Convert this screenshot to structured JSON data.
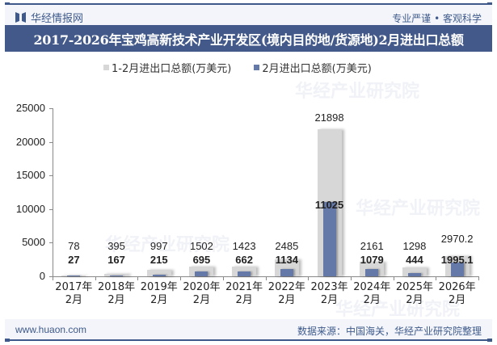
{
  "header": {
    "logo_text": "华经情报网",
    "slogan": "专业严谨 • 客观科学"
  },
  "title": "2017-2026年宝鸡高新技术产业开发区(境内目的地/货源地)2月进出口总额",
  "legend": [
    {
      "label": "1-2月进出口总额(万美元)",
      "color": "#d7d7d7"
    },
    {
      "label": "2月进出口总额(万美元)",
      "color": "#6479a8"
    }
  ],
  "watermark": "华经产业研究院",
  "footer": {
    "website": "www.huaon.com",
    "source": "数据来源：中国海关，华经产业研究院整理"
  },
  "chart_data": {
    "type": "bar",
    "title": "2017-2026年宝鸡高新技术产业开发区(境内目的地/货源地)2月进出口总额",
    "xlabel": "",
    "ylabel": "",
    "ylim": [
      0,
      25000
    ],
    "yticks": [
      0,
      5000,
      10000,
      15000,
      20000,
      25000
    ],
    "grid": false,
    "legend_position": "top",
    "categories": [
      "2017年\n2月",
      "2018年\n2月",
      "2019年\n2月",
      "2020年\n2月",
      "2021年\n2月",
      "2022年\n2月",
      "2023年\n2月",
      "2024年\n2月",
      "2025年\n2月",
      "2026年\n2月"
    ],
    "category_lines": [
      [
        "2017年",
        "2月"
      ],
      [
        "2018年",
        "2月"
      ],
      [
        "2019年",
        "2月"
      ],
      [
        "2020年",
        "2月"
      ],
      [
        "2021年",
        "2月"
      ],
      [
        "2022年",
        "2月"
      ],
      [
        "2023年",
        "2月"
      ],
      [
        "2024年",
        "2月"
      ],
      [
        "2025年",
        "2月"
      ],
      [
        "2026年",
        "2月"
      ]
    ],
    "series": [
      {
        "name": "1-2月进出口总额(万美元)",
        "color": "#d7d7d7",
        "values": [
          78,
          395,
          997,
          1502,
          1423,
          2485,
          21898,
          2161,
          1298,
          2970.2
        ],
        "labels": [
          "78",
          "395",
          "997",
          "1502",
          "1423",
          "2485",
          "21898",
          "2161",
          "1298",
          "2970.2"
        ]
      },
      {
        "name": "2月进出口总额(万美元)",
        "color": "#6479a8",
        "values": [
          27,
          167,
          215,
          695,
          662,
          1134,
          11025,
          1079,
          444,
          1995.1
        ],
        "labels": [
          "27",
          "167",
          "215",
          "695",
          "662",
          "1134",
          "11025",
          "1079",
          "444",
          "1995.1"
        ]
      }
    ]
  }
}
